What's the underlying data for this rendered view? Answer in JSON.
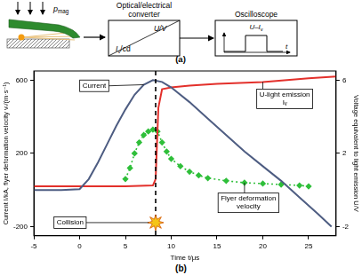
{
  "diagram": {
    "label": "(a)",
    "pressure": {
      "main": "p",
      "sub": "mag"
    },
    "converter": {
      "title": "Optical/electrical converter",
      "output": "U/V",
      "input": {
        "main": "I",
        "sub": "v",
        "rest": "/cd"
      }
    },
    "oscilloscope": {
      "title": "Oscilloscope",
      "signal": {
        "main": "U–I",
        "sub": "v"
      },
      "time_axis": "t"
    }
  },
  "chart_data": {
    "type": "line",
    "label": "(b)",
    "x_label": "Time t/μs",
    "y_label": "Current I/kA, flyer deformation velocity vᵣ/(m·s⁻¹)",
    "y2_label": "Voltage equivalent to light emission U/V",
    "xlim": [
      -5,
      28
    ],
    "xticks": [
      -5,
      0,
      5,
      10,
      15,
      20,
      25
    ],
    "ylim": [
      -250,
      650
    ],
    "yticks": [
      -200,
      200,
      600
    ],
    "y2lim": [
      -2.5,
      6.5
    ],
    "y2ticks": [
      -2,
      2,
      6
    ],
    "grid": false,
    "series": [
      {
        "name": "Current",
        "color": "#4e5d82",
        "line_style": "solid",
        "marker": "none",
        "x": [
          -5,
          -2,
          0,
          1,
          2,
          3,
          4,
          5,
          6,
          7,
          8,
          9,
          10,
          12,
          14,
          16,
          18,
          20,
          22,
          24,
          26,
          27.5
        ],
        "values": [
          0,
          0,
          5,
          60,
          150,
          250,
          350,
          440,
          520,
          575,
          600,
          590,
          560,
          480,
          390,
          300,
          210,
          130,
          50,
          -40,
          -130,
          -200
        ]
      },
      {
        "name": "U-light emission Iᵥ",
        "color": "#e3302b",
        "line_style": "solid",
        "marker": "none",
        "axis": "y2",
        "x": [
          -5,
          0,
          5,
          8,
          8.3,
          8.6,
          9,
          10,
          12,
          15,
          20,
          25,
          28
        ],
        "values": [
          0.2,
          0.2,
          0.2,
          0.25,
          0.6,
          4.5,
          5.5,
          5.6,
          5.7,
          5.8,
          5.9,
          6.1,
          6.2
        ]
      },
      {
        "name": "Flyer deformation velocity",
        "color": "#2fbf3a",
        "line_style": "dotted",
        "marker": "diamond",
        "x": [
          5,
          5.5,
          6,
          6.5,
          7,
          7.5,
          8,
          8.5,
          9,
          9.5,
          10,
          11,
          12,
          13,
          14,
          16,
          18,
          20,
          22,
          24,
          25
        ],
        "values": [
          60,
          120,
          200,
          260,
          300,
          320,
          330,
          320,
          260,
          210,
          170,
          130,
          100,
          80,
          65,
          50,
          40,
          35,
          30,
          25,
          20
        ]
      }
    ],
    "annotations": [
      {
        "text": "Collision",
        "x": 8.3
      }
    ]
  }
}
